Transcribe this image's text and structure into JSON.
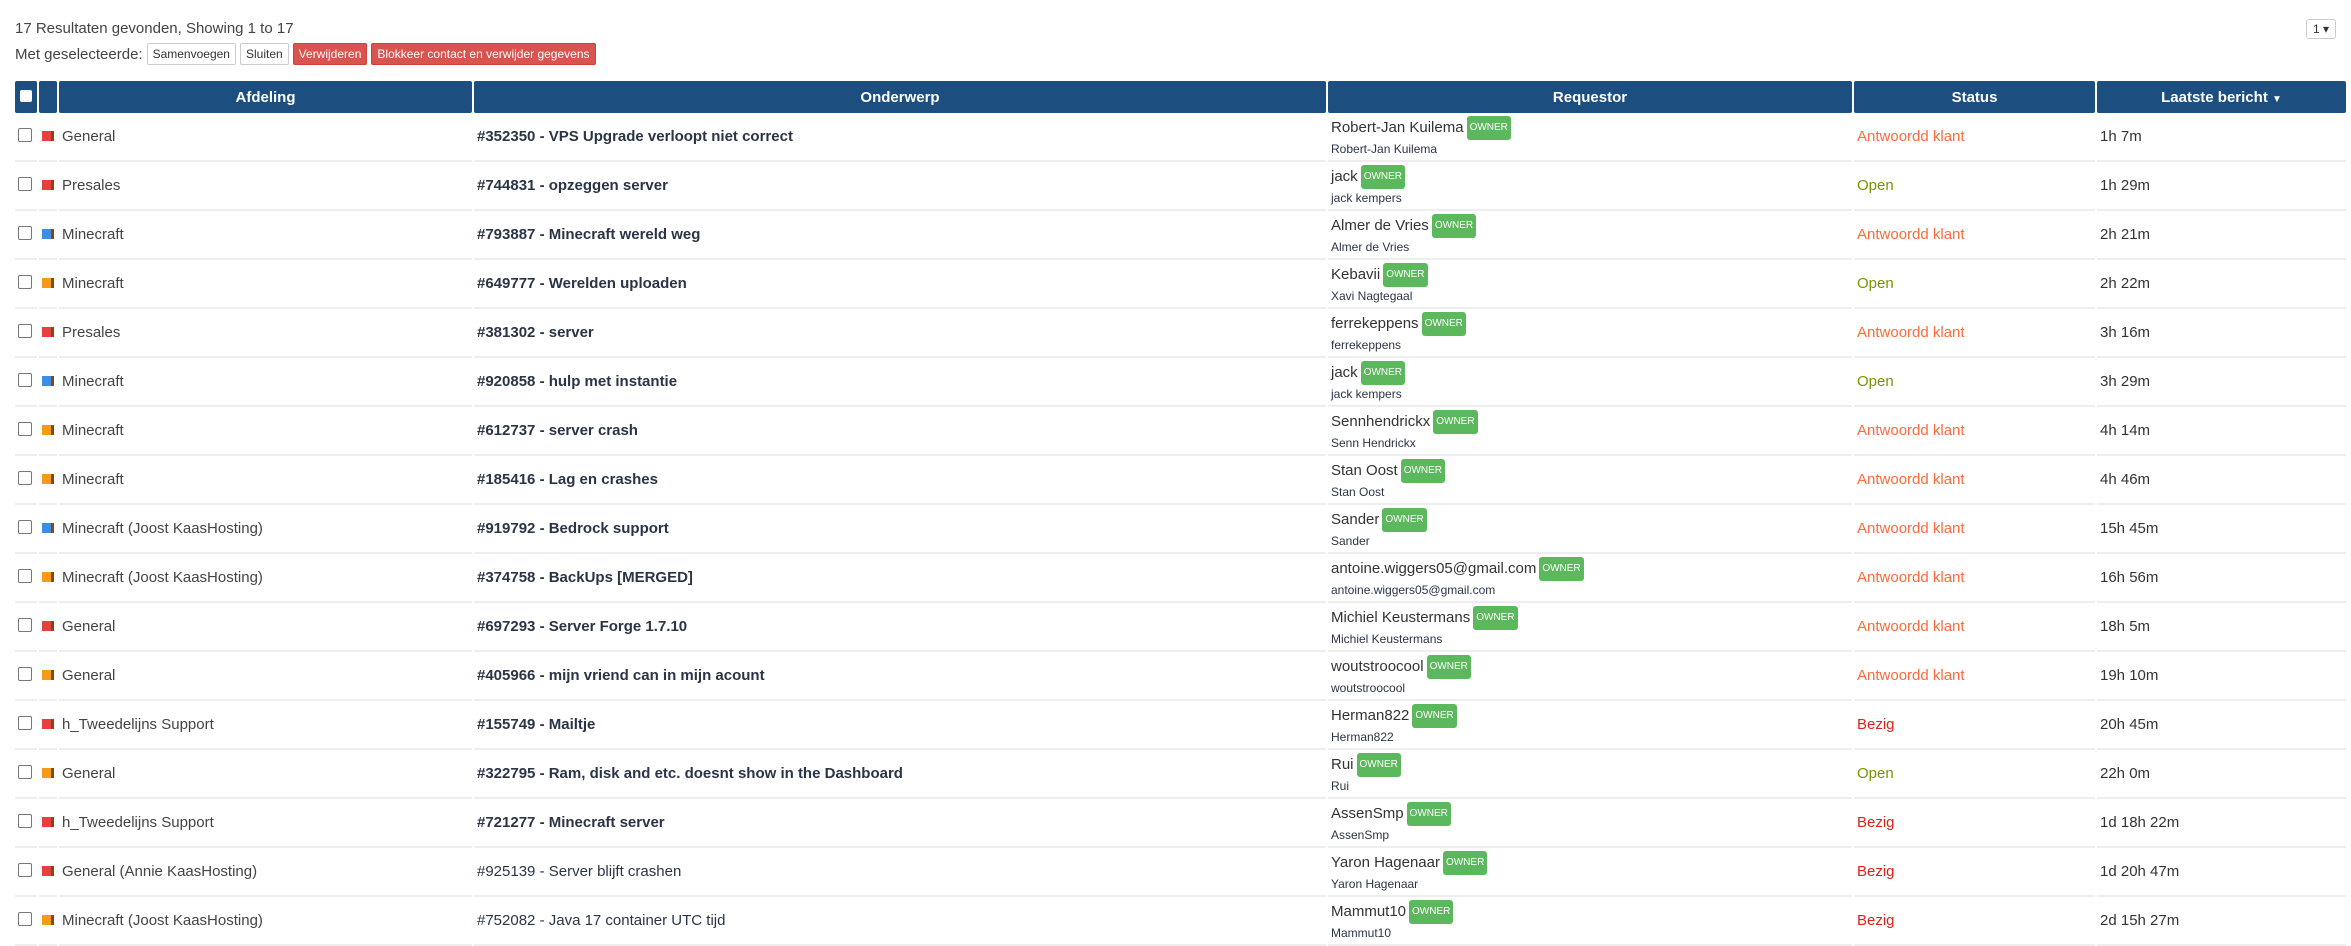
{
  "summary": "17 Resultaten gevonden, Showing 1 to 17",
  "actions": {
    "label": "Met geselecteerde:",
    "merge": "Samenvoegen",
    "close": "Sluiten",
    "delete": "Verwijderen",
    "block": "Blokkeer contact en verwijder gegevens"
  },
  "pager": {
    "value": "1",
    "icon": "caret-down-icon"
  },
  "headers": {
    "department": "Afdeling",
    "subject": "Onderwerp",
    "requestor": "Requestor",
    "status": "Status",
    "last": "Laatste bericht",
    "sort_icon": "▼"
  },
  "colors": {
    "header": "#1c4e80",
    "flag_red": "#e8403f",
    "flag_blue": "#3a8ee6",
    "flag_orange": "#f59a1b",
    "status_answered": "#ff6a3d",
    "status_open": "#779500",
    "status_busy": "#e0201b",
    "badge": "#5cb85c"
  },
  "badge_label": "OWNER",
  "rows": [
    {
      "flag": "red",
      "dept": "General",
      "subject": "#352350 - VPS Upgrade verloopt niet correct",
      "bold": true,
      "name": "Robert-Jan Kuilema",
      "sub": "Robert-Jan Kuilema",
      "status": "Antwoordd klant",
      "status_type": "answered",
      "last": "1h 7m"
    },
    {
      "flag": "red",
      "dept": "Presales",
      "subject": "#744831 - opzeggen server",
      "bold": true,
      "name": "jack",
      "sub": "jack kempers",
      "status": "Open",
      "status_type": "open",
      "last": "1h 29m"
    },
    {
      "flag": "blue",
      "dept": "Minecraft",
      "subject": "#793887 - Minecraft wereld weg",
      "bold": true,
      "name": "Almer de Vries",
      "sub": "Almer de Vries",
      "status": "Antwoordd klant",
      "status_type": "answered",
      "last": "2h 21m"
    },
    {
      "flag": "orange",
      "dept": "Minecraft",
      "subject": "#649777 - Werelden uploaden",
      "bold": true,
      "name": "Kebavii",
      "sub": "Xavi Nagtegaal",
      "status": "Open",
      "status_type": "open",
      "last": "2h 22m"
    },
    {
      "flag": "red",
      "dept": "Presales",
      "subject": "#381302 - server",
      "bold": true,
      "name": "ferrekeppens",
      "sub": "ferrekeppens",
      "status": "Antwoordd klant",
      "status_type": "answered",
      "last": "3h 16m"
    },
    {
      "flag": "blue",
      "dept": "Minecraft",
      "subject": "#920858 - hulp met instantie",
      "bold": true,
      "name": "jack",
      "sub": "jack kempers",
      "status": "Open",
      "status_type": "open",
      "last": "3h 29m"
    },
    {
      "flag": "orange",
      "dept": "Minecraft",
      "subject": "#612737 - server crash",
      "bold": true,
      "name": "Sennhendrickx",
      "sub": "Senn Hendrickx",
      "status": "Antwoordd klant",
      "status_type": "answered",
      "last": "4h 14m"
    },
    {
      "flag": "orange",
      "dept": "Minecraft",
      "subject": "#185416 - Lag en crashes",
      "bold": true,
      "name": "Stan Oost",
      "sub": "Stan Oost",
      "status": "Antwoordd klant",
      "status_type": "answered",
      "last": "4h 46m"
    },
    {
      "flag": "blue",
      "dept": "Minecraft (Joost KaasHosting)",
      "subject": "#919792 - Bedrock support",
      "bold": true,
      "name": "Sander",
      "sub": "Sander",
      "status": "Antwoordd klant",
      "status_type": "answered",
      "last": "15h 45m"
    },
    {
      "flag": "orange",
      "dept": "Minecraft (Joost KaasHosting)",
      "subject": "#374758 - BackUps [MERGED]",
      "bold": true,
      "name": "antoine.wiggers05@gmail.com",
      "sub": "antoine.wiggers05@gmail.com",
      "status": "Antwoordd klant",
      "status_type": "answered",
      "last": "16h 56m"
    },
    {
      "flag": "red",
      "dept": "General",
      "subject": "#697293 - Server Forge 1.7.10",
      "bold": true,
      "name": "Michiel Keustermans",
      "sub": "Michiel Keustermans",
      "status": "Antwoordd klant",
      "status_type": "answered",
      "last": "18h 5m"
    },
    {
      "flag": "orange",
      "dept": "General",
      "subject": "#405966 - mijn vriend can in mijn acount",
      "bold": true,
      "name": "woutstroocool",
      "sub": "woutstroocool",
      "status": "Antwoordd klant",
      "status_type": "answered",
      "last": "19h 10m"
    },
    {
      "flag": "red",
      "dept": "h_Tweedelijns Support",
      "subject": "#155749 - Mailtje",
      "bold": true,
      "name": "Herman822",
      "sub": "Herman822",
      "status": "Bezig",
      "status_type": "busy",
      "last": "20h 45m"
    },
    {
      "flag": "orange",
      "dept": "General",
      "subject": "#322795 - Ram, disk and etc. doesnt show in the Dashboard",
      "bold": true,
      "name": "Rui",
      "sub": "Rui",
      "status": "Open",
      "status_type": "open",
      "last": "22h 0m"
    },
    {
      "flag": "red",
      "dept": "h_Tweedelijns Support",
      "subject": "#721277 - Minecraft server",
      "bold": true,
      "name": "AssenSmp",
      "sub": "AssenSmp",
      "status": "Bezig",
      "status_type": "busy",
      "last": "1d 18h 22m"
    },
    {
      "flag": "red",
      "dept": "General (Annie KaasHosting)",
      "subject": "#925139 - Server blijft crashen",
      "bold": false,
      "name": "Yaron Hagenaar",
      "sub": "Yaron Hagenaar",
      "status": "Bezig",
      "status_type": "busy",
      "last": "1d 20h 47m"
    },
    {
      "flag": "orange",
      "dept": "Minecraft (Joost KaasHosting)",
      "subject": "#752082 - Java 17 container UTC tijd",
      "bold": false,
      "name": "Mammut10",
      "sub": "Mammut10",
      "status": "Bezig",
      "status_type": "busy",
      "last": "2d 15h 27m"
    }
  ]
}
